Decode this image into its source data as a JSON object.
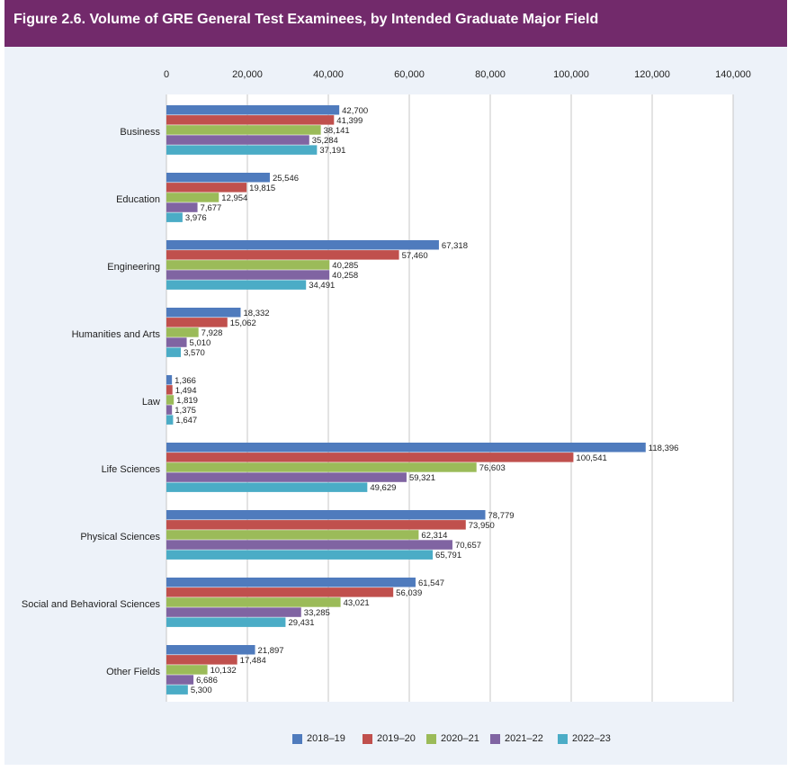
{
  "figure": {
    "title": "Figure 2.6. Volume of GRE General Test Examinees, by Intended Graduate Major Field"
  },
  "chart_data": {
    "type": "bar",
    "orientation": "horizontal",
    "title": "Figure 2.6. Volume of GRE General Test Examinees, by Intended Graduate Major Field",
    "xlabel": "",
    "ylabel": "",
    "xlim": [
      0,
      140000
    ],
    "x_ticks": [
      "0",
      "20,000",
      "40,000",
      "60,000",
      "80,000",
      "100,000",
      "120,000",
      "140,000"
    ],
    "x_tick_values": [
      0,
      20000,
      40000,
      60000,
      80000,
      100000,
      120000,
      140000
    ],
    "grid": true,
    "legend_position": "bottom",
    "categories": [
      "Business",
      "Education",
      "Engineering",
      "Humanities and Arts",
      "Law",
      "Life Sciences",
      "Physical Sciences",
      "Social and Behavioral Sciences",
      "Other Fields"
    ],
    "series": [
      {
        "name": "2018–19",
        "color": "#4f7bbd",
        "values": [
          42700,
          25546,
          67318,
          18332,
          1366,
          118396,
          78779,
          61547,
          21897
        ],
        "labels": [
          "42,700",
          "25,546",
          "67,318",
          "18,332",
          "1,366",
          "118,396",
          "78,779",
          "61,547",
          "21,897"
        ]
      },
      {
        "name": "2019–20",
        "color": "#c0504d",
        "values": [
          41399,
          19815,
          57460,
          15062,
          1494,
          100541,
          73950,
          56039,
          17484
        ],
        "labels": [
          "41,399",
          "19,815",
          "57,460",
          "15,062",
          "1,494",
          "100,541",
          "73,950",
          "56,039",
          "17,484"
        ]
      },
      {
        "name": "2020–21",
        "color": "#9bbb59",
        "values": [
          38141,
          12954,
          40285,
          7928,
          1819,
          76603,
          62314,
          43021,
          10132
        ],
        "labels": [
          "38,141",
          "12,954",
          "40,285",
          "7,928",
          "1,819",
          "76,603",
          "62,314",
          "43,021",
          "10,132"
        ]
      },
      {
        "name": "2021–22",
        "color": "#8064a2",
        "values": [
          35284,
          7677,
          40258,
          5010,
          1375,
          59321,
          70657,
          33285,
          6686
        ],
        "labels": [
          "35,284",
          "7,677",
          "40,258",
          "5,010",
          "1,375",
          "59,321",
          "70,657",
          "33,285",
          "6,686"
        ]
      },
      {
        "name": "2022–23",
        "color": "#4bacc6",
        "values": [
          37191,
          3976,
          34491,
          3570,
          1647,
          49629,
          65791,
          29431,
          5300
        ],
        "labels": [
          "37,191",
          "3,976",
          "34,491",
          "3,570",
          "1,647",
          "49,629",
          "65,791",
          "29,431",
          "5,300"
        ]
      }
    ]
  }
}
